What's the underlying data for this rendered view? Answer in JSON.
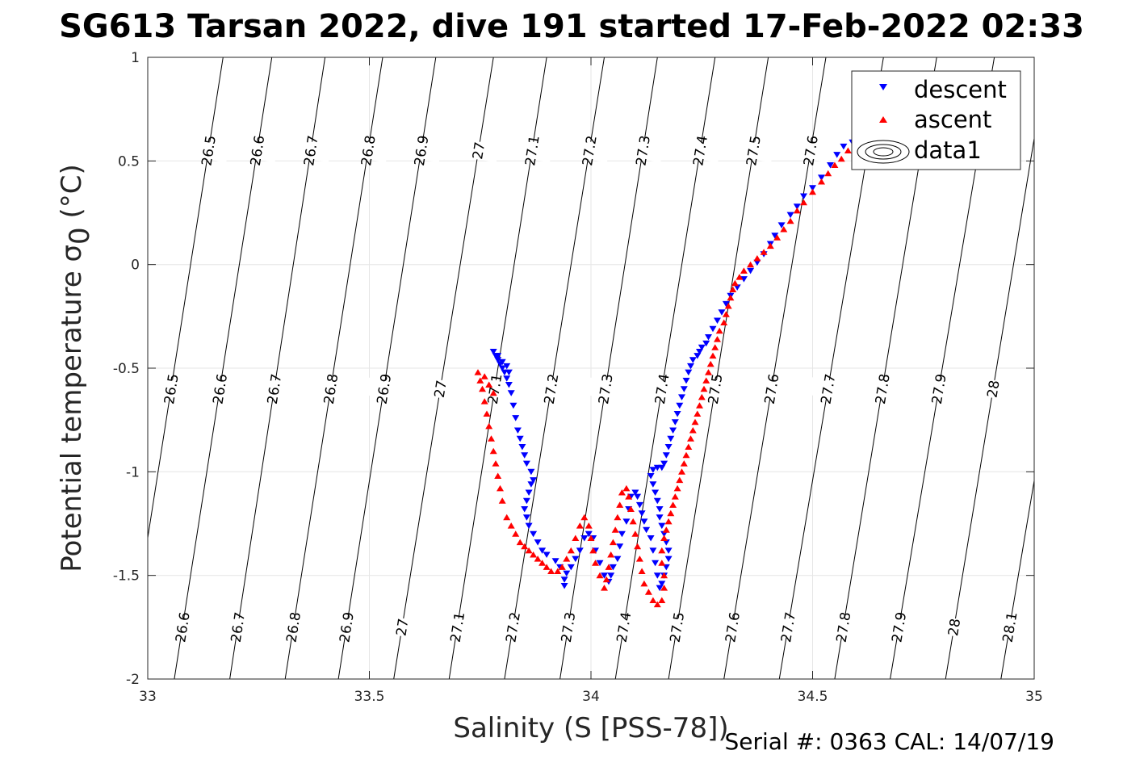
{
  "chart_data": {
    "type": "scatter",
    "title": "SG613 Tarsan 2022, dive 191 started 17-Feb-2022 02:33",
    "xlabel": "Salinity (S [PSS-78])",
    "ylabel_main": "Potential temperature ",
    "ylabel_sigma": "σ",
    "ylabel_sub": "0",
    "ylabel_unit": " (°C)",
    "xlim": [
      33,
      35
    ],
    "ylim": [
      -2,
      1
    ],
    "xticks": [
      33,
      33.5,
      34,
      34.5,
      35
    ],
    "xtick_labels": [
      "33",
      "33.5",
      "34",
      "34.5",
      "35"
    ],
    "yticks": [
      1,
      0.5,
      0,
      -0.5,
      -1,
      -1.5,
      -2
    ],
    "ytick_labels": [
      "1",
      "0.5",
      "0",
      "-0.5",
      "-1",
      "-1.5",
      "-2"
    ],
    "grid": true,
    "legend_position": "top-right",
    "legend": [
      {
        "label": "descent",
        "marker": "triangle-down",
        "color": "#0000ff"
      },
      {
        "label": "ascent",
        "marker": "triangle-up",
        "color": "#ff0000"
      },
      {
        "label": "data1",
        "marker": "contour",
        "color": "#000000"
      }
    ],
    "density_contours": {
      "levels": [
        26.5,
        26.6,
        26.7,
        26.8,
        26.9,
        27,
        27.1,
        27.2,
        27.3,
        27.4,
        27.5,
        27.6,
        27.7,
        27.8,
        27.9,
        28,
        28.1
      ],
      "level_labels": [
        "26.5",
        "26.6",
        "26.7",
        "26.8",
        "26.9",
        "27",
        "27.1",
        "27.2",
        "27.3",
        "27.4",
        "27.5",
        "27.6",
        "27.7",
        "27.8",
        "27.9",
        "28",
        "28.1"
      ],
      "bottom_salinity": [
        null,
        33.06,
        33.185,
        33.31,
        33.43,
        33.555,
        33.68,
        33.805,
        33.93,
        34.055,
        34.175,
        34.3,
        34.425,
        34.55,
        34.675,
        34.8,
        34.925
      ],
      "top_salinity": [
        33.17,
        33.28,
        33.4,
        33.53,
        33.65,
        33.78,
        33.9,
        34.03,
        34.15,
        34.28,
        34.4,
        34.53,
        34.66,
        34.78,
        34.91,
        35.03,
        35.16
      ],
      "line_color": "#000000"
    },
    "series": [
      {
        "name": "descent",
        "color": "#0000ff",
        "marker": "triangle-down",
        "points": [
          [
            34.59,
            0.59
          ],
          [
            34.57,
            0.57
          ],
          [
            34.555,
            0.53
          ],
          [
            34.54,
            0.48
          ],
          [
            34.52,
            0.42
          ],
          [
            34.5,
            0.37
          ],
          [
            34.48,
            0.33
          ],
          [
            34.465,
            0.28
          ],
          [
            34.45,
            0.24
          ],
          [
            34.43,
            0.19
          ],
          [
            34.415,
            0.14
          ],
          [
            34.405,
            0.1
          ],
          [
            34.39,
            0.05
          ],
          [
            34.375,
            0.01
          ],
          [
            34.36,
            -0.03
          ],
          [
            34.345,
            -0.07
          ],
          [
            34.33,
            -0.11
          ],
          [
            34.315,
            -0.15
          ],
          [
            34.305,
            -0.19
          ],
          [
            34.295,
            -0.23
          ],
          [
            34.285,
            -0.27
          ],
          [
            34.275,
            -0.31
          ],
          [
            34.265,
            -0.35
          ],
          [
            34.26,
            -0.38
          ],
          [
            34.25,
            -0.4
          ],
          [
            34.245,
            -0.42
          ],
          [
            34.24,
            -0.44
          ],
          [
            34.23,
            -0.46
          ],
          [
            34.225,
            -0.49
          ],
          [
            34.22,
            -0.52
          ],
          [
            34.215,
            -0.56
          ],
          [
            34.21,
            -0.6
          ],
          [
            34.205,
            -0.64
          ],
          [
            34.2,
            -0.68
          ],
          [
            34.195,
            -0.72
          ],
          [
            34.19,
            -0.76
          ],
          [
            34.185,
            -0.8
          ],
          [
            34.18,
            -0.84
          ],
          [
            34.175,
            -0.88
          ],
          [
            34.17,
            -0.92
          ],
          [
            34.165,
            -0.96
          ],
          [
            34.16,
            -0.98
          ],
          [
            34.15,
            -0.98
          ],
          [
            34.14,
            -0.99
          ],
          [
            34.135,
            -1.02
          ],
          [
            34.14,
            -1.06
          ],
          [
            34.145,
            -1.1
          ],
          [
            34.15,
            -1.14
          ],
          [
            34.155,
            -1.18
          ],
          [
            34.155,
            -1.22
          ],
          [
            34.16,
            -1.26
          ],
          [
            34.165,
            -1.3
          ],
          [
            34.17,
            -1.34
          ],
          [
            34.175,
            -1.38
          ],
          [
            34.175,
            -1.42
          ],
          [
            34.17,
            -1.46
          ],
          [
            34.165,
            -1.5
          ],
          [
            34.16,
            -1.54
          ],
          [
            34.155,
            -1.56
          ],
          [
            34.15,
            -1.5
          ],
          [
            34.145,
            -1.44
          ],
          [
            34.14,
            -1.38
          ],
          [
            34.135,
            -1.32
          ],
          [
            34.125,
            -1.28
          ],
          [
            34.12,
            -1.24
          ],
          [
            34.115,
            -1.2
          ],
          [
            34.11,
            -1.16
          ],
          [
            34.105,
            -1.12
          ],
          [
            34.1,
            -1.1
          ],
          [
            34.09,
            -1.12
          ],
          [
            34.085,
            -1.18
          ],
          [
            34.08,
            -1.24
          ],
          [
            34.07,
            -1.3
          ],
          [
            34.065,
            -1.36
          ],
          [
            34.06,
            -1.42
          ],
          [
            34.05,
            -1.46
          ],
          [
            34.045,
            -1.5
          ],
          [
            34.04,
            -1.53
          ],
          [
            34.03,
            -1.5
          ],
          [
            34.02,
            -1.44
          ],
          [
            34.01,
            -1.38
          ],
          [
            34.005,
            -1.32
          ],
          [
            33.995,
            -1.3
          ],
          [
            33.985,
            -1.32
          ],
          [
            33.975,
            -1.38
          ],
          [
            33.965,
            -1.42
          ],
          [
            33.955,
            -1.46
          ],
          [
            33.945,
            -1.49
          ],
          [
            33.94,
            -1.52
          ],
          [
            33.94,
            -1.55
          ],
          [
            33.93,
            -1.46
          ],
          [
            33.92,
            -1.43
          ],
          [
            33.9,
            -1.4
          ],
          [
            33.89,
            -1.38
          ],
          [
            33.88,
            -1.34
          ],
          [
            33.87,
            -1.3
          ],
          [
            33.86,
            -1.26
          ],
          [
            33.855,
            -1.22
          ],
          [
            33.85,
            -1.18
          ],
          [
            33.855,
            -1.14
          ],
          [
            33.86,
            -1.1
          ],
          [
            33.865,
            -1.06
          ],
          [
            33.87,
            -1.04
          ],
          [
            33.865,
            -1.0
          ],
          [
            33.855,
            -0.96
          ],
          [
            33.85,
            -0.92
          ],
          [
            33.845,
            -0.88
          ],
          [
            33.84,
            -0.84
          ],
          [
            33.835,
            -0.8
          ],
          [
            33.83,
            -0.74
          ],
          [
            33.825,
            -0.68
          ],
          [
            33.82,
            -0.62
          ],
          [
            33.815,
            -0.58
          ],
          [
            33.81,
            -0.55
          ],
          [
            33.805,
            -0.52
          ],
          [
            33.8,
            -0.5
          ],
          [
            33.795,
            -0.48
          ],
          [
            33.79,
            -0.46
          ],
          [
            33.785,
            -0.44
          ],
          [
            33.78,
            -0.42
          ],
          [
            33.79,
            -0.44
          ],
          [
            33.8,
            -0.47
          ],
          [
            33.81,
            -0.49
          ],
          [
            33.815,
            -0.52
          ]
        ]
      },
      {
        "name": "ascent",
        "color": "#ff0000",
        "marker": "triangle-up",
        "points": [
          [
            34.595,
            0.59
          ],
          [
            34.58,
            0.55
          ],
          [
            34.565,
            0.51
          ],
          [
            34.55,
            0.48
          ],
          [
            34.535,
            0.44
          ],
          [
            34.52,
            0.4
          ],
          [
            34.5,
            0.35
          ],
          [
            34.48,
            0.3
          ],
          [
            34.465,
            0.26
          ],
          [
            34.45,
            0.21
          ],
          [
            34.435,
            0.17
          ],
          [
            34.42,
            0.13
          ],
          [
            34.405,
            0.09
          ],
          [
            34.39,
            0.06
          ],
          [
            34.375,
            0.03
          ],
          [
            34.36,
            0.0
          ],
          [
            34.345,
            -0.03
          ],
          [
            34.335,
            -0.06
          ],
          [
            34.325,
            -0.09
          ],
          [
            34.32,
            -0.12
          ],
          [
            34.315,
            -0.16
          ],
          [
            34.31,
            -0.2
          ],
          [
            34.305,
            -0.24
          ],
          [
            34.3,
            -0.28
          ],
          [
            34.29,
            -0.32
          ],
          [
            34.285,
            -0.36
          ],
          [
            34.28,
            -0.4
          ],
          [
            34.275,
            -0.44
          ],
          [
            34.27,
            -0.48
          ],
          [
            34.265,
            -0.52
          ],
          [
            34.26,
            -0.56
          ],
          [
            34.255,
            -0.6
          ],
          [
            34.25,
            -0.64
          ],
          [
            34.245,
            -0.68
          ],
          [
            34.24,
            -0.72
          ],
          [
            34.235,
            -0.76
          ],
          [
            34.23,
            -0.8
          ],
          [
            34.225,
            -0.84
          ],
          [
            34.22,
            -0.88
          ],
          [
            34.215,
            -0.92
          ],
          [
            34.21,
            -0.96
          ],
          [
            34.205,
            -1.0
          ],
          [
            34.2,
            -1.04
          ],
          [
            34.195,
            -1.08
          ],
          [
            34.19,
            -1.12
          ],
          [
            34.185,
            -1.16
          ],
          [
            34.18,
            -1.2
          ],
          [
            34.175,
            -1.24
          ],
          [
            34.17,
            -1.28
          ],
          [
            34.165,
            -1.32
          ],
          [
            34.16,
            -1.38
          ],
          [
            34.16,
            -1.44
          ],
          [
            34.165,
            -1.5
          ],
          [
            34.165,
            -1.56
          ],
          [
            34.16,
            -1.62
          ],
          [
            34.15,
            -1.64
          ],
          [
            34.14,
            -1.62
          ],
          [
            34.13,
            -1.58
          ],
          [
            34.12,
            -1.54
          ],
          [
            34.115,
            -1.48
          ],
          [
            34.11,
            -1.42
          ],
          [
            34.105,
            -1.36
          ],
          [
            34.1,
            -1.3
          ],
          [
            34.095,
            -1.24
          ],
          [
            34.09,
            -1.18
          ],
          [
            34.085,
            -1.12
          ],
          [
            34.08,
            -1.08
          ],
          [
            34.07,
            -1.1
          ],
          [
            34.065,
            -1.16
          ],
          [
            34.06,
            -1.22
          ],
          [
            34.055,
            -1.28
          ],
          [
            34.05,
            -1.34
          ],
          [
            34.045,
            -1.4
          ],
          [
            34.04,
            -1.46
          ],
          [
            34.035,
            -1.52
          ],
          [
            34.03,
            -1.56
          ],
          [
            34.02,
            -1.5
          ],
          [
            34.01,
            -1.44
          ],
          [
            34.005,
            -1.38
          ],
          [
            34.0,
            -1.32
          ],
          [
            33.995,
            -1.26
          ],
          [
            33.985,
            -1.22
          ],
          [
            33.975,
            -1.26
          ],
          [
            33.965,
            -1.32
          ],
          [
            33.955,
            -1.38
          ],
          [
            33.945,
            -1.42
          ],
          [
            33.935,
            -1.46
          ],
          [
            33.925,
            -1.48
          ],
          [
            33.91,
            -1.48
          ],
          [
            33.9,
            -1.46
          ],
          [
            33.89,
            -1.44
          ],
          [
            33.88,
            -1.42
          ],
          [
            33.87,
            -1.4
          ],
          [
            33.86,
            -1.38
          ],
          [
            33.85,
            -1.36
          ],
          [
            33.84,
            -1.34
          ],
          [
            33.83,
            -1.3
          ],
          [
            33.82,
            -1.26
          ],
          [
            33.81,
            -1.22
          ],
          [
            33.8,
            -1.14
          ],
          [
            33.795,
            -1.08
          ],
          [
            33.79,
            -1.02
          ],
          [
            33.785,
            -0.96
          ],
          [
            33.78,
            -0.9
          ],
          [
            33.775,
            -0.84
          ],
          [
            33.77,
            -0.78
          ],
          [
            33.765,
            -0.72
          ],
          [
            33.76,
            -0.66
          ],
          [
            33.755,
            -0.6
          ],
          [
            33.75,
            -0.56
          ],
          [
            33.745,
            -0.52
          ],
          [
            33.76,
            -0.54
          ],
          [
            33.77,
            -0.58
          ],
          [
            33.78,
            -0.62
          ]
        ]
      }
    ]
  },
  "footer": {
    "serial": "Serial #: 0363  CAL: 14/07/19"
  }
}
